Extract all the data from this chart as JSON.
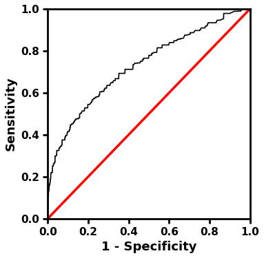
{
  "xlabel": "1 - Specificity",
  "ylabel": "Sensitivity",
  "xlim": [
    0.0,
    1.0
  ],
  "ylim": [
    0.0,
    1.0
  ],
  "xticks": [
    0.0,
    0.2,
    0.4,
    0.6,
    0.8,
    1.0
  ],
  "yticks": [
    0.0,
    0.2,
    0.4,
    0.6,
    0.8,
    1.0
  ],
  "reference_line_color": "#ff0000",
  "roc_curve_color": "#000000",
  "background_color": "#ffffff",
  "roc_linewidth": 1.2,
  "ref_linewidth": 2.5,
  "axis_linewidth": 2.0,
  "xlabel_fontsize": 13,
  "ylabel_fontsize": 13,
  "tick_fontsize": 11,
  "tick_fontweight": "bold",
  "label_fontweight": "bold",
  "show_top_right_spines": true
}
